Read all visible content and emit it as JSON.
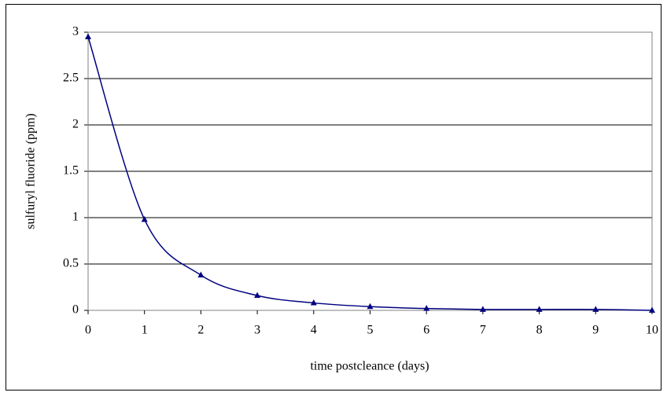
{
  "chart_data": {
    "type": "line",
    "x_label": "time postcleance (days)",
    "y_label": "sulfuryl fluoride (ppm)",
    "x": [
      0,
      1,
      2,
      3,
      4,
      5,
      6,
      7,
      8,
      9,
      10
    ],
    "series": [
      {
        "color": "#000080",
        "values": [
          2.95,
          0.98,
          0.38,
          0.16,
          0.08,
          0.04,
          0.02,
          0.01,
          0.01,
          0.01,
          0
        ]
      }
    ],
    "xlim": [
      0,
      10
    ],
    "xticks": [
      0,
      1,
      2,
      3,
      4,
      5,
      6,
      7,
      8,
      9,
      10
    ],
    "ylim": [
      0,
      3
    ],
    "yticks": [
      0,
      0.5,
      1,
      1.5,
      2,
      2.5,
      3
    ],
    "grid": true,
    "marker": "triangle"
  }
}
